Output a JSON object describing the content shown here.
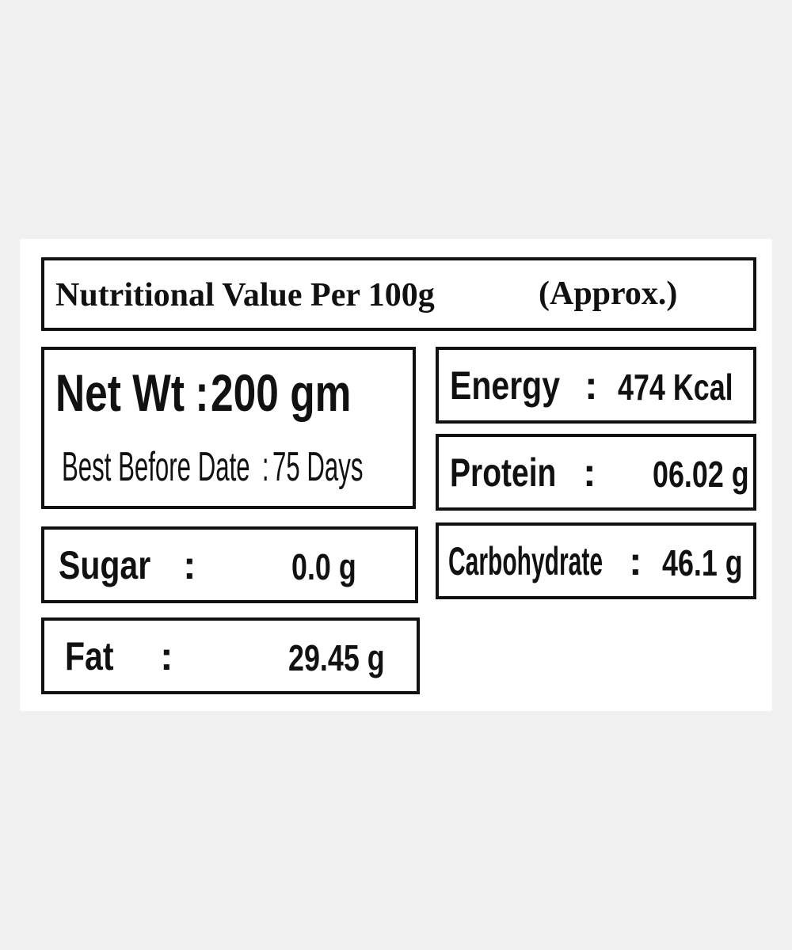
{
  "header": {
    "title": "Nutritional Value Per 100g",
    "note": "(Approx.)"
  },
  "separator": ":",
  "net_weight": {
    "label": "Net Wt",
    "value": "200 gm"
  },
  "best_before": {
    "label": "Best Before Date",
    "value": "75 Days"
  },
  "nutrients": [
    {
      "label": "Energy",
      "value": "474 Kcal"
    },
    {
      "label": "Protein",
      "value": "06.02 g"
    },
    {
      "label": "Carbohydrate",
      "value": "46.1 g"
    },
    {
      "label": "Sugar",
      "value": "0.0 g"
    },
    {
      "label": "Fat",
      "value": "29.45 g"
    }
  ]
}
